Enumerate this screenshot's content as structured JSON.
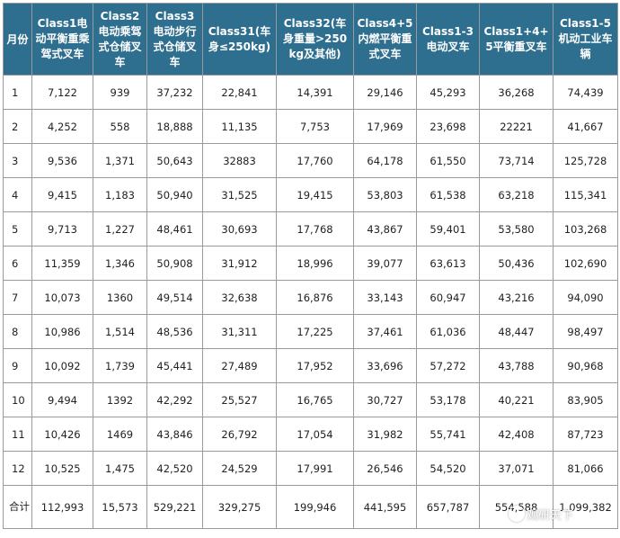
{
  "table": {
    "headers": [
      "月份",
      "Class1电动平衡重乘驾式叉车",
      "Class2电动乘驾式仓储叉车",
      "Class3电动步行式仓储叉车",
      "Class31(车身≤250kg)",
      "Class32(车身重量>250kg及其他)",
      "Class4+5内燃平衡重式叉车",
      "Class1-3电动叉车",
      "Class1+4+5平衡重叉车",
      "Class1-5机动工业车辆"
    ],
    "rows": [
      [
        "1",
        "7,122",
        "939",
        "37,232",
        "22,841",
        "14,391",
        "29,146",
        "45,293",
        "36,268",
        "74,439"
      ],
      [
        "2",
        "4,252",
        "558",
        "18,888",
        "11,135",
        "7,753",
        "17,969",
        "23,698",
        "22221",
        "41,667"
      ],
      [
        "3",
        "9,536",
        "1,371",
        "50,643",
        "32883",
        "17,760",
        "64,178",
        "61,550",
        "73,714",
        "125,728"
      ],
      [
        "4",
        "9,415",
        "1,183",
        "50,940",
        "31,525",
        "19,415",
        "53,803",
        "61,538",
        "63,218",
        "115,341"
      ],
      [
        "5",
        "9,713",
        "1,227",
        "48,461",
        "30,693",
        "17,768",
        "43,867",
        "59,401",
        "53,580",
        "103,268"
      ],
      [
        "6",
        "11,359",
        "1,346",
        "50,908",
        "31,912",
        "18,996",
        "39,077",
        "63,613",
        "50,436",
        "102,690"
      ],
      [
        "7",
        "10,073",
        "1360",
        "49,514",
        "32,638",
        "16,876",
        "33,143",
        "60,947",
        "43,216",
        "94,090"
      ],
      [
        "8",
        "10,986",
        "1,514",
        "48,536",
        "31,311",
        "17,225",
        "37,461",
        "61,036",
        "48,447",
        "98,497"
      ],
      [
        "9",
        "10,092",
        "1,739",
        "45,441",
        "27,489",
        "17,952",
        "33,696",
        "57,272",
        "43,788",
        "90,968"
      ],
      [
        "10",
        "9,494",
        "1392",
        "42,292",
        "25,527",
        "16,765",
        "30,727",
        "53,178",
        "40,221",
        "83,905"
      ],
      [
        "11",
        "10,426",
        "1469",
        "43,846",
        "26,792",
        "17,054",
        "31,982",
        "55,741",
        "42,408",
        "87,723"
      ],
      [
        "12",
        "10,525",
        "1,475",
        "42,520",
        "24,529",
        "17,991",
        "26,546",
        "54,520",
        "37,071",
        "81,066"
      ],
      [
        "合计",
        "112,993",
        "15,573",
        "529,221",
        "329,275",
        "199,946",
        "441,595",
        "657,787",
        "554,588",
        "1,099,382"
      ]
    ]
  },
  "watermark": {
    "text": "观研天下",
    "icon": "logo-circle-icon"
  },
  "colors": {
    "header_bg": "#2e6e8e",
    "header_text": "#ffffff",
    "border": "#9a9a9a"
  }
}
